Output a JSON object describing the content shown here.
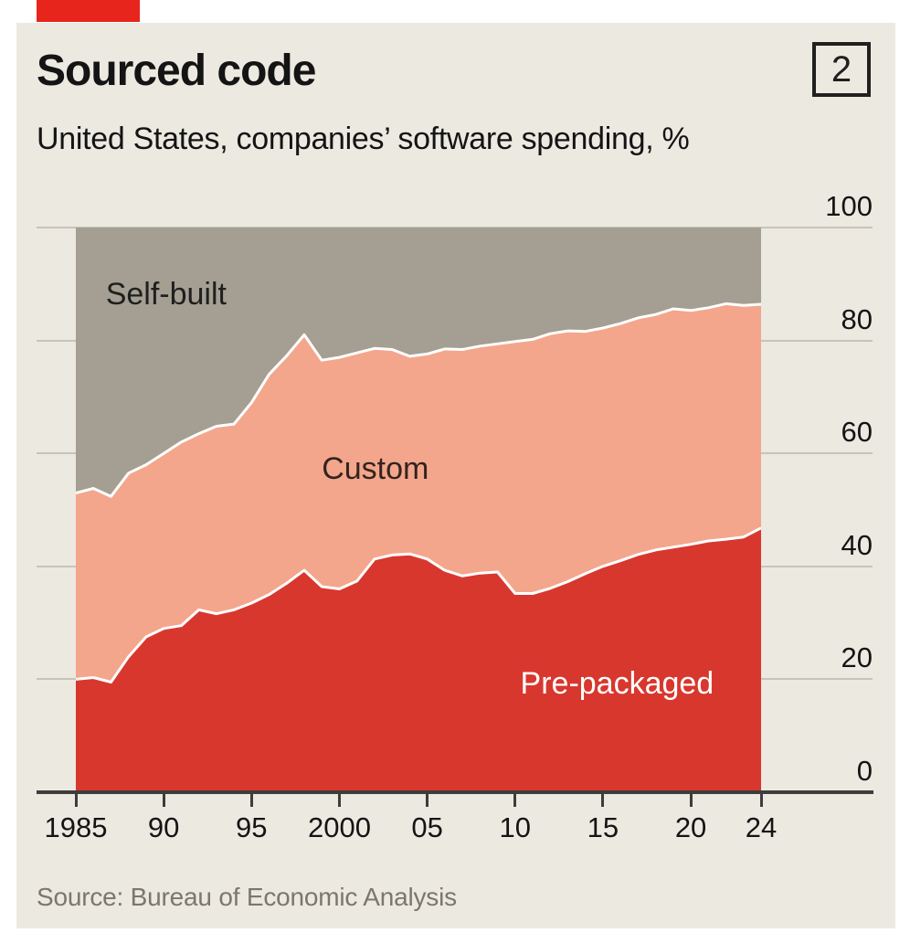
{
  "page": {
    "background": "#ffffff"
  },
  "brand": {
    "tab_color": "#E8251C",
    "card_background": "#ECE9E1"
  },
  "header": {
    "title": "Sourced code",
    "index_badge": "2",
    "subtitle": "United States, companies’ software spending, %"
  },
  "footer": {
    "source": "Source: Bureau of Economic Analysis"
  },
  "chart_data": {
    "type": "area",
    "stacked": true,
    "unit": "%",
    "grid": "horizontal",
    "legend_position": "in-plot-labels",
    "ylim": [
      0,
      100
    ],
    "yticks": [
      "0",
      "20",
      "40",
      "60",
      "80",
      "100"
    ],
    "ytick_values": [
      0,
      20,
      40,
      60,
      80,
      100
    ],
    "xticks": [
      {
        "year": 1985,
        "label": "1985"
      },
      {
        "year": 1990,
        "label": "90"
      },
      {
        "year": 1995,
        "label": "95"
      },
      {
        "year": 2000,
        "label": "2000"
      },
      {
        "year": 2005,
        "label": "05"
      },
      {
        "year": 2010,
        "label": "10"
      },
      {
        "year": 2015,
        "label": "15"
      },
      {
        "year": 2020,
        "label": "20"
      },
      {
        "year": 2024,
        "label": "24"
      }
    ],
    "x": [
      1985,
      1986,
      1987,
      1988,
      1989,
      1990,
      1991,
      1992,
      1993,
      1994,
      1995,
      1996,
      1997,
      1998,
      1999,
      2000,
      2001,
      2002,
      2003,
      2004,
      2005,
      2006,
      2007,
      2008,
      2009,
      2010,
      2011,
      2012,
      2013,
      2014,
      2015,
      2016,
      2017,
      2018,
      2019,
      2020,
      2021,
      2022,
      2023,
      2024
    ],
    "series": [
      {
        "name": "Pre-packaged",
        "color": "#D8372E",
        "values": [
          20.0,
          20.3,
          19.5,
          24.0,
          27.5,
          29.0,
          29.5,
          32.3,
          31.6,
          32.3,
          33.5,
          35.0,
          37.0,
          39.3,
          36.4,
          36.0,
          37.4,
          41.3,
          42.0,
          42.2,
          41.3,
          39.3,
          38.3,
          38.8,
          39.0,
          35.2,
          35.2,
          36.1,
          37.3,
          38.7,
          40.0,
          41.0,
          42.1,
          42.9,
          43.4,
          43.9,
          44.5,
          44.8,
          45.2,
          46.8
        ]
      },
      {
        "name": "Custom",
        "color": "#F3A68C",
        "values": [
          33.0,
          33.5,
          32.9,
          32.5,
          30.5,
          31.0,
          32.5,
          31.2,
          33.2,
          32.9,
          35.5,
          39.0,
          40.3,
          41.7,
          40.1,
          41.0,
          40.4,
          37.3,
          36.4,
          35.0,
          36.3,
          39.2,
          40.1,
          40.2,
          40.4,
          44.6,
          45.0,
          45.1,
          44.4,
          42.9,
          42.2,
          42.0,
          41.9,
          41.7,
          42.2,
          41.4,
          41.3,
          41.7,
          41.0,
          39.6
        ]
      },
      {
        "name": "Self-built",
        "color": "#A49F92",
        "values": [
          47.0,
          46.2,
          47.6,
          43.5,
          42.0,
          40.0,
          38.0,
          36.5,
          35.2,
          34.8,
          31.0,
          26.0,
          22.7,
          19.0,
          23.5,
          23.0,
          22.2,
          21.4,
          21.6,
          22.8,
          22.4,
          21.5,
          21.6,
          21.0,
          20.6,
          20.2,
          19.8,
          18.8,
          18.3,
          18.4,
          17.8,
          17.0,
          16.0,
          15.4,
          14.4,
          14.7,
          14.2,
          13.5,
          13.8,
          13.6
        ]
      }
    ],
    "boundary_stroke": "#ffffff",
    "annotations": [
      {
        "text": "Self-built",
        "year": 1986.7,
        "pct": 91.3,
        "color": "#1f1f1f"
      },
      {
        "text": "Custom",
        "year": 1999.0,
        "pct": 60.4,
        "color": "#33231e"
      },
      {
        "text": "Pre-packaged",
        "year": 2010.3,
        "pct": 22.3,
        "color": "#ffffff"
      }
    ],
    "axis_colors": {
      "gridline": "#c8c4b9",
      "baseline": "#3d3d3b",
      "tick_label": "#141414"
    }
  }
}
